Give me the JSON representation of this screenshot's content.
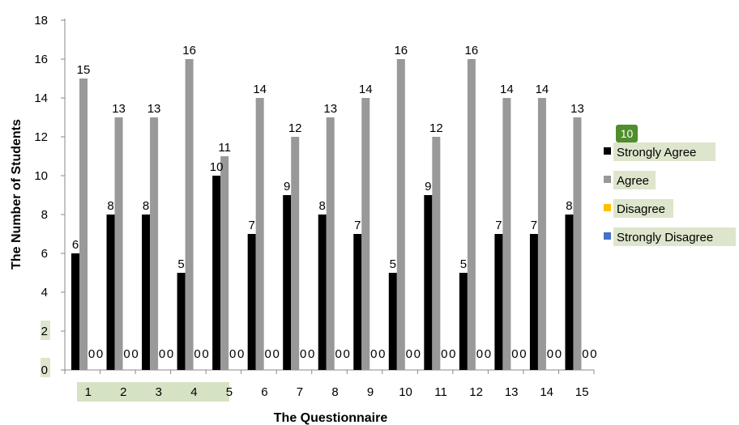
{
  "chart_data": {
    "type": "bar",
    "xlabel": "The Questionnaire",
    "ylabel": "The Number of Students",
    "ylim": [
      0,
      18
    ],
    "yticks": [
      0,
      2,
      4,
      6,
      8,
      10,
      12,
      14,
      16,
      18
    ],
    "categories": [
      "1",
      "2",
      "3",
      "4",
      "5",
      "6",
      "7",
      "8",
      "9",
      "10",
      "11",
      "12",
      "13",
      "14",
      "15"
    ],
    "series": [
      {
        "name": "Strongly Agree",
        "color": "#000000",
        "values": [
          6,
          8,
          8,
          5,
          10,
          7,
          9,
          8,
          7,
          5,
          9,
          5,
          7,
          7,
          8
        ]
      },
      {
        "name": "Agree",
        "color": "#999999",
        "values": [
          15,
          13,
          13,
          16,
          11,
          14,
          12,
          13,
          14,
          16,
          12,
          16,
          14,
          14,
          13
        ]
      },
      {
        "name": "Disagree",
        "color": "#ffc000",
        "values": [
          0,
          0,
          0,
          0,
          0,
          0,
          0,
          0,
          0,
          0,
          0,
          0,
          0,
          0,
          0
        ]
      },
      {
        "name": "Strongly Disagree",
        "color": "#4472c4",
        "values": [
          0,
          0,
          0,
          0,
          0,
          0,
          0,
          0,
          0,
          0,
          0,
          0,
          0,
          0,
          0
        ]
      }
    ],
    "legend_position": "right",
    "legend_badge": "10",
    "grid": false
  }
}
